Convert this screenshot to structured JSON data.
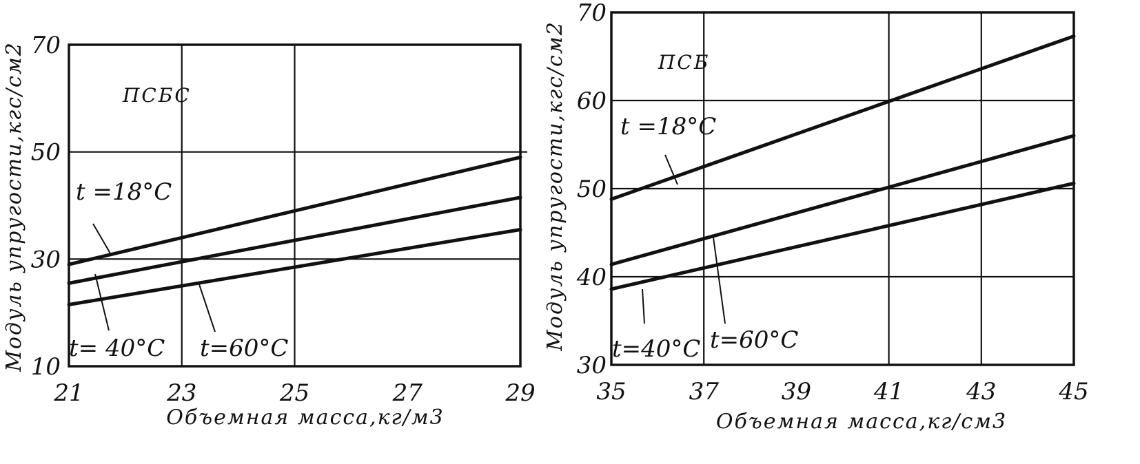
{
  "chart_data": [
    {
      "type": "line",
      "title": "ПСБС",
      "xlabel": "Объемная масса,кг/м3",
      "ylabel": "Модуль упругости,кгс/см2",
      "xlim": [
        21,
        29
      ],
      "ylim": [
        10,
        70
      ],
      "x_ticks": [
        "21",
        "23",
        "25",
        "27",
        "29"
      ],
      "y_ticks": [
        "10",
        "30",
        "50",
        "70"
      ],
      "grid": true,
      "series": [
        {
          "x": [
            21.0,
            29.0
          ],
          "y": [
            29.0,
            49.0
          ]
        },
        {
          "x": [
            21.0,
            29.0
          ],
          "y": [
            25.5,
            41.5
          ]
        },
        {
          "x": [
            21.0,
            29.0
          ],
          "y": [
            21.5,
            35.5
          ]
        }
      ],
      "annotations": [
        "t =18°C",
        "t= 40°C",
        "t=60°C"
      ]
    },
    {
      "type": "line",
      "title": "ПСБ",
      "xlabel": "Объемная масса,кг/см3",
      "ylabel": "Модуль упругости,кгс/см2",
      "xlim": [
        35,
        45
      ],
      "ylim": [
        30,
        70
      ],
      "x_ticks": [
        "35",
        "37",
        "39",
        "41",
        "43",
        "45"
      ],
      "y_ticks": [
        "30",
        "40",
        "50",
        "60",
        "70"
      ],
      "grid": true,
      "series": [
        {
          "x": [
            35.0,
            45.0
          ],
          "y": [
            48.8,
            67.3
          ]
        },
        {
          "x": [
            35.0,
            45.0
          ],
          "y": [
            41.4,
            56.0
          ]
        },
        {
          "x": [
            35.0,
            45.0
          ],
          "y": [
            38.6,
            50.6
          ]
        }
      ],
      "annotations": [
        "t =18°C",
        "t=40°C",
        "t=60°C"
      ]
    }
  ]
}
